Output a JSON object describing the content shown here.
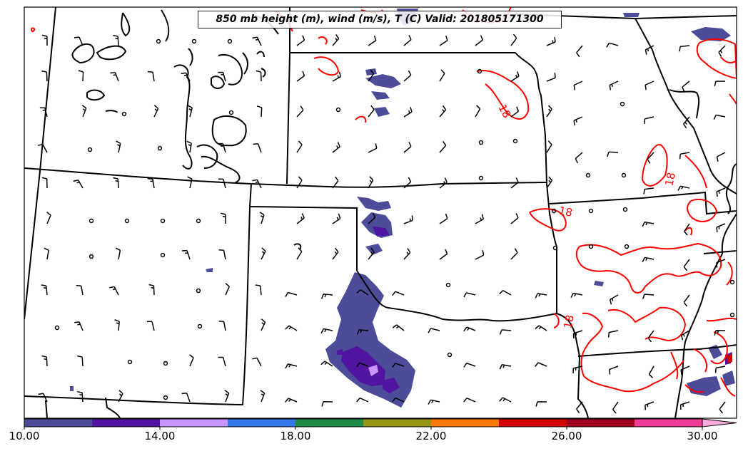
{
  "title": "850 mb height (m), wind (m/s), T (C) Valid: 201805171300",
  "contour": {
    "label": "18",
    "color": "#ff0000"
  },
  "colorbar": {
    "ticks": [
      "10.00",
      "14.00",
      "18.00",
      "22.00",
      "26.00",
      "30.00"
    ],
    "min": 10,
    "max": 31,
    "colors": [
      "#4c4c99",
      "#5014a0",
      "#c896ff",
      "#3278e6",
      "#1e8c46",
      "#969614",
      "#ff7800",
      "#d20000",
      "#a0001e",
      "#f03c96",
      "#ffaadc"
    ]
  }
}
